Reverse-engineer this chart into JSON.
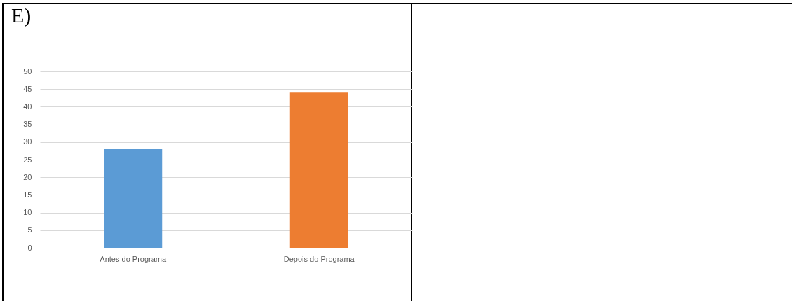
{
  "chart_data": {
    "type": "bar",
    "title": "E)",
    "categories": [
      "Antes do Programa",
      "Depois do Programa"
    ],
    "values": [
      28,
      44
    ],
    "colors": [
      "#5b9bd5",
      "#ed7d31"
    ],
    "ylim": [
      0,
      50
    ],
    "yticks": [
      0,
      5,
      10,
      15,
      20,
      25,
      30,
      35,
      40,
      45,
      50
    ],
    "grid": "y"
  }
}
